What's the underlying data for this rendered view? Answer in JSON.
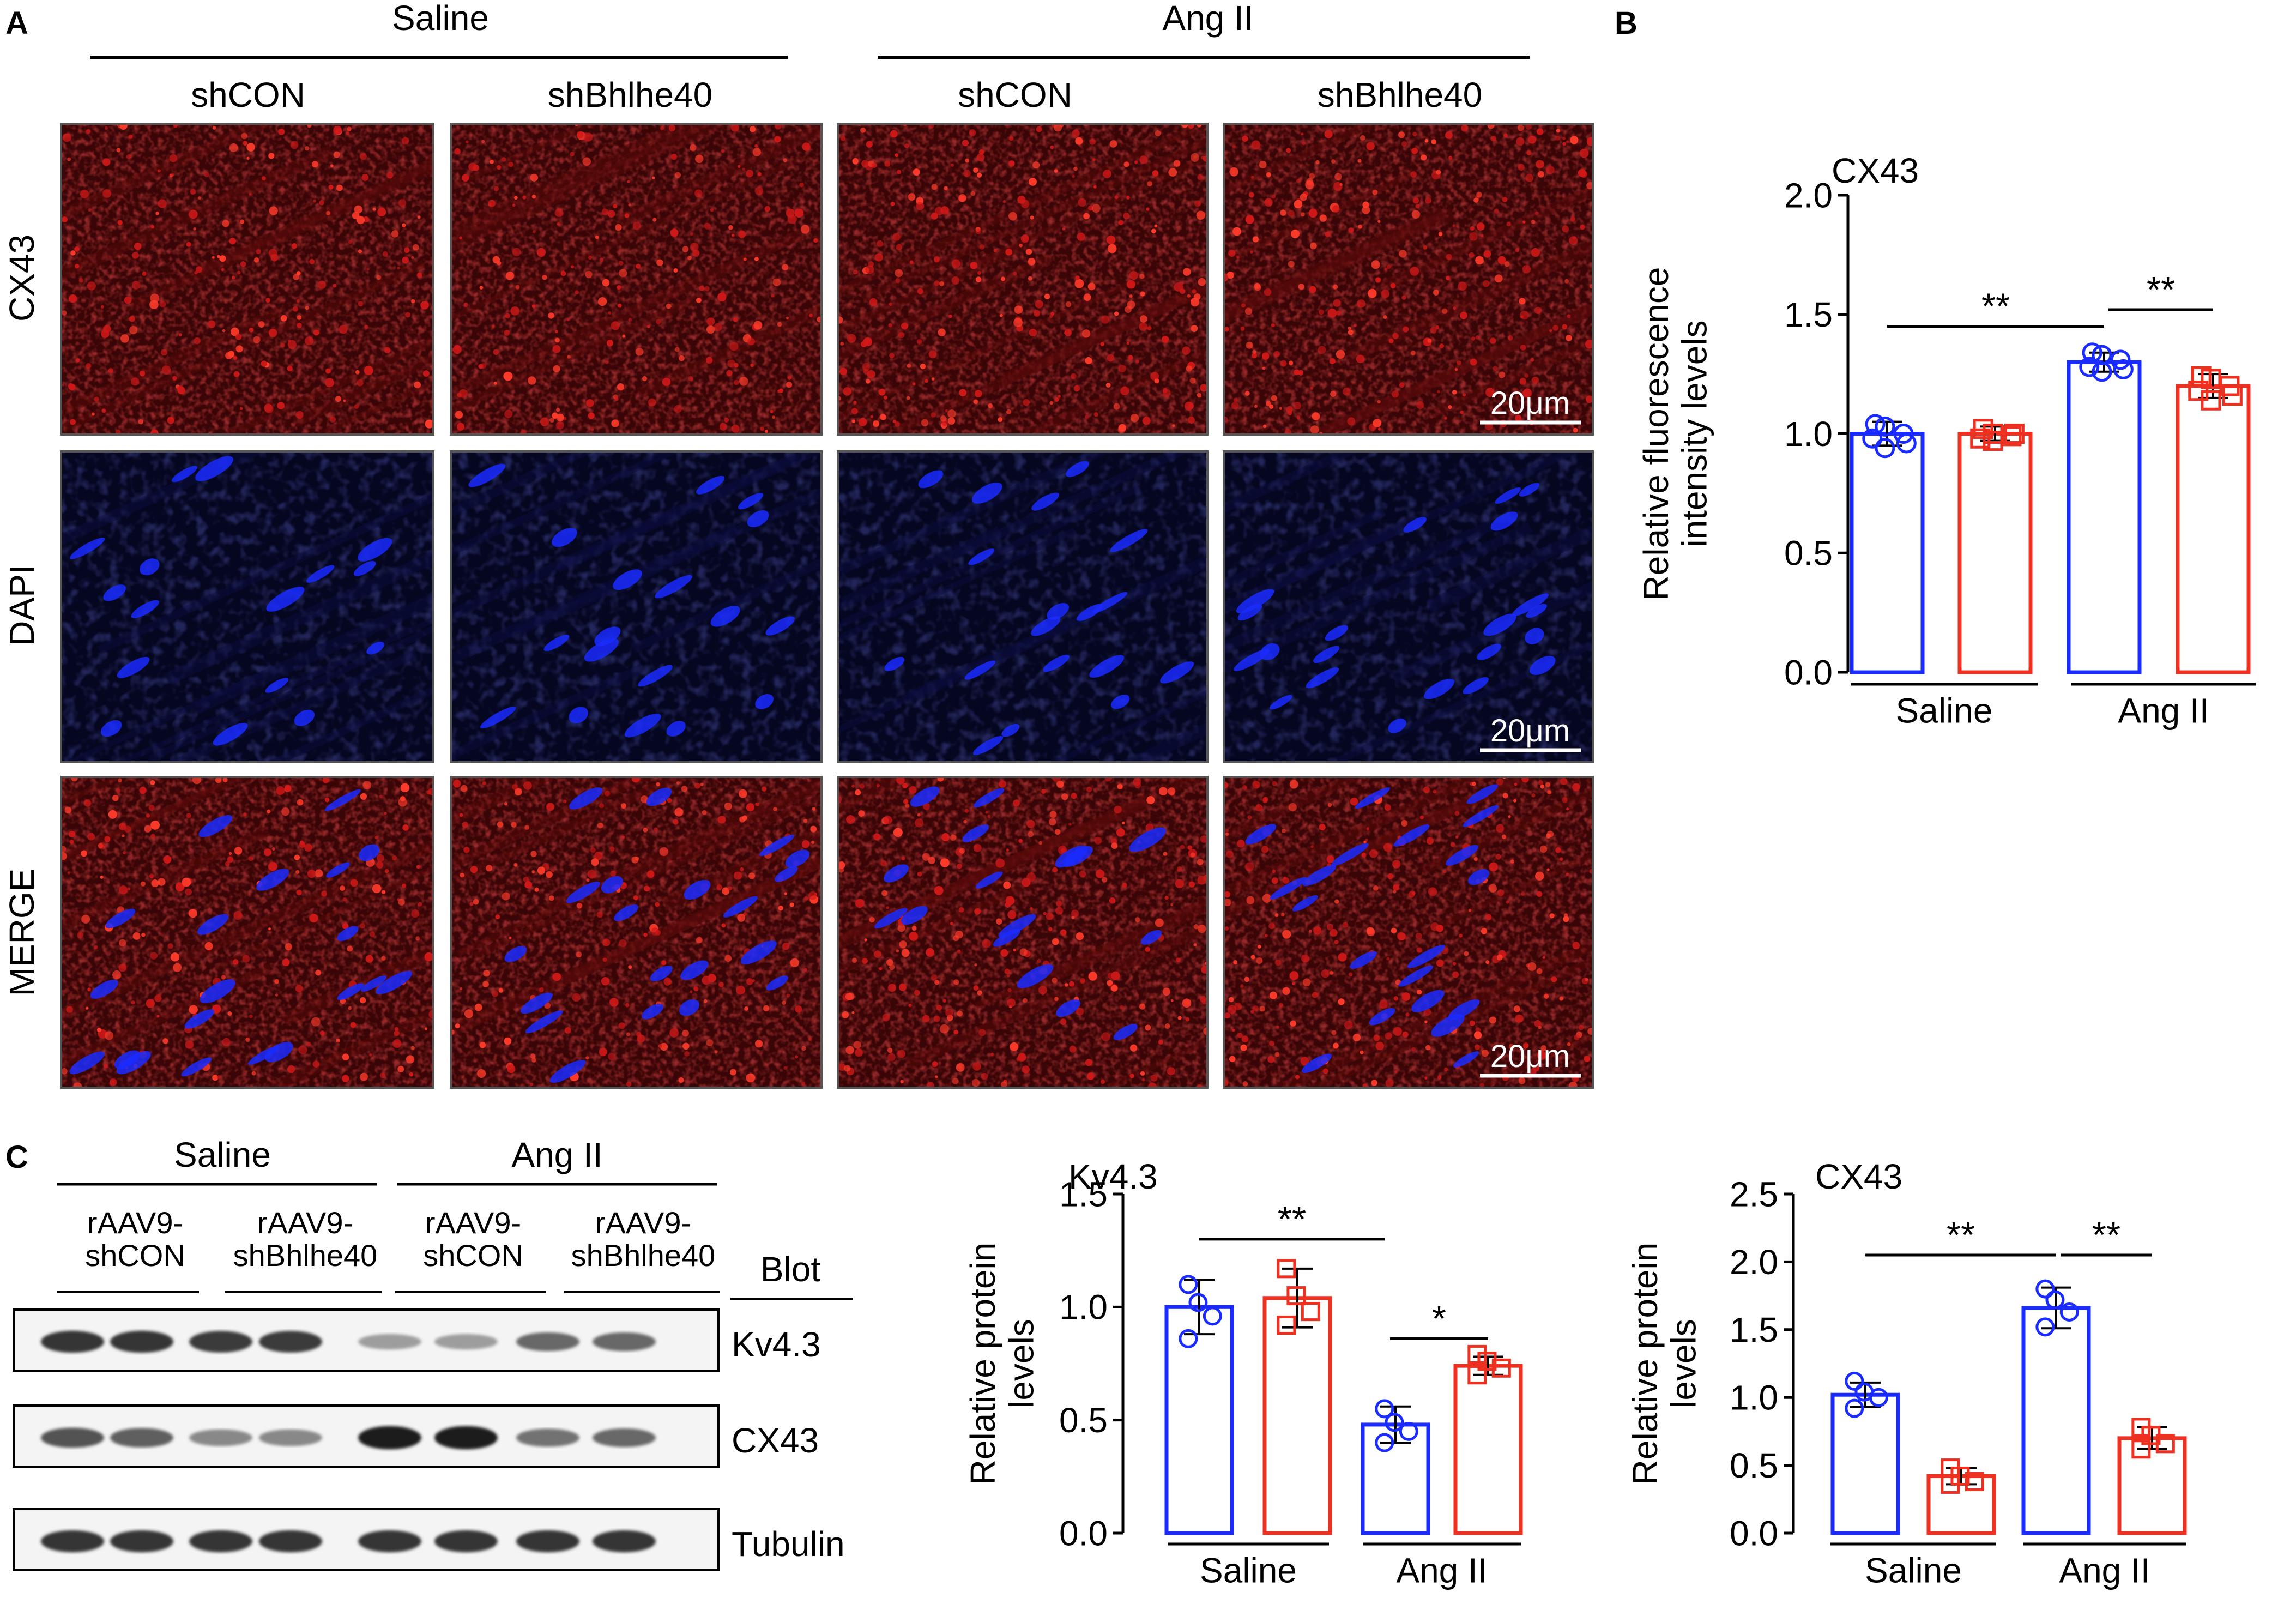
{
  "panel_letters": {
    "a": "A",
    "b": "B",
    "c": "C"
  },
  "panel_a": {
    "groups": [
      "Saline",
      "Ang II"
    ],
    "columns": [
      "shCON",
      "shBhlhe40",
      "shCON",
      "shBhlhe40"
    ],
    "rows": [
      "CX43",
      "DAPI",
      "MERGE"
    ],
    "scale_bar": "20μm",
    "colors": {
      "cx43": "#d01818",
      "dapi": "#1a2bff",
      "bg_red": "#3a0506",
      "bg_blue": "#050620"
    }
  },
  "panel_b": {
    "title": "CX43",
    "ylabel_line1": "Relative fluorescence",
    "ylabel_line2": "intensity levels",
    "yticks": [
      "2.0",
      "1.5",
      "1.0",
      "0.5",
      "0.0"
    ],
    "groups": [
      "Saline",
      "Ang II"
    ],
    "sig": [
      "**",
      "**"
    ]
  },
  "panel_c": {
    "groups": [
      "Saline",
      "Ang II"
    ],
    "lanes": [
      {
        "line1": "rAAV9-",
        "line2": "shCON"
      },
      {
        "line1": "rAAV9-",
        "line2": "shBhlhe40"
      },
      {
        "line1": "rAAV9-",
        "line2": "shCON"
      },
      {
        "line1": "rAAV9-",
        "line2": "shBhlhe40"
      }
    ],
    "blot_header": "Blot",
    "bands": [
      "Kv4.3",
      "CX43",
      "Tubulin"
    ],
    "kv43_intensity": [
      0.85,
      0.85,
      0.82,
      0.82,
      0.35,
      0.35,
      0.6,
      0.6
    ],
    "cx43_intensity": [
      0.7,
      0.65,
      0.45,
      0.45,
      0.95,
      0.95,
      0.55,
      0.6
    ],
    "tub_intensity": [
      0.85,
      0.85,
      0.85,
      0.85,
      0.85,
      0.85,
      0.85,
      0.85
    ]
  },
  "chart_data": [
    {
      "type": "bar",
      "title": "CX43",
      "xlabel": "",
      "ylabel": "Relative fluorescence intensity levels",
      "categories": [
        "Saline",
        "Ang II"
      ],
      "ylim": [
        0,
        2.0
      ],
      "ytick_step": 0.5,
      "ytick_labels": [
        "2.0",
        "1.5",
        "1.0",
        "0.5",
        "0.0"
      ],
      "series": [
        {
          "color": "#1a2bff",
          "values": [
            1.0,
            1.3
          ],
          "errors": [
            0.05,
            0.04
          ],
          "points": [
            [
              1.04,
              1.03,
              1.0,
              0.98,
              0.94,
              0.96
            ],
            [
              1.34,
              1.33,
              1.31,
              1.28,
              1.26,
              1.27
            ]
          ]
        },
        {
          "color": "#ee3020",
          "values": [
            1.0,
            1.2
          ],
          "errors": [
            0.03,
            0.05
          ],
          "points": [
            [
              1.02,
              1.0,
              0.99,
              0.98,
              0.97,
              1.0
            ],
            [
              1.24,
              1.23,
              1.2,
              1.18,
              1.14,
              1.16
            ]
          ]
        }
      ],
      "significance": [
        {
          "label": "**",
          "y": 1.45
        },
        {
          "label": "**",
          "y": 1.52
        }
      ]
    },
    {
      "type": "bar",
      "title": "Kv4.3",
      "xlabel": "",
      "ylabel": "Relative protein levels",
      "categories": [
        "Saline",
        "Ang II"
      ],
      "ylim": [
        0,
        1.5
      ],
      "ytick_step": 0.5,
      "ytick_labels": [
        "1.5",
        "1.0",
        "0.5",
        "0.0"
      ],
      "series": [
        {
          "color": "#1a2bff",
          "values": [
            1.0,
            0.48
          ],
          "errors": [
            0.12,
            0.08
          ],
          "points": [
            [
              1.1,
              1.02,
              0.96,
              0.86
            ],
            [
              0.55,
              0.49,
              0.45,
              0.4
            ]
          ]
        },
        {
          "color": "#ee3020",
          "values": [
            1.04,
            0.74
          ],
          "errors": [
            0.13,
            0.04
          ],
          "points": [
            [
              1.17,
              1.05,
              0.98,
              0.92
            ],
            [
              0.79,
              0.76,
              0.73,
              0.7
            ]
          ]
        }
      ],
      "significance": [
        {
          "label": "**",
          "y": 1.3
        },
        {
          "label": "*",
          "y": 0.86
        }
      ]
    },
    {
      "type": "bar",
      "title": "CX43",
      "xlabel": "",
      "ylabel": "Relative protein levels",
      "categories": [
        "Saline",
        "Ang II"
      ],
      "ylim": [
        0,
        2.5
      ],
      "ytick_step": 0.5,
      "ytick_labels": [
        "2.5",
        "2.0",
        "1.5",
        "1.0",
        "0.5",
        "0.0"
      ],
      "series": [
        {
          "color": "#1a2bff",
          "values": [
            1.02,
            1.66
          ],
          "errors": [
            0.09,
            0.15
          ],
          "points": [
            [
              1.12,
              1.04,
              1.0,
              0.92
            ],
            [
              1.8,
              1.72,
              1.63,
              1.52
            ]
          ]
        },
        {
          "color": "#ee3020",
          "values": [
            0.42,
            0.7
          ],
          "errors": [
            0.06,
            0.08
          ],
          "points": [
            [
              0.48,
              0.42,
              0.38,
              0.36
            ],
            [
              0.78,
              0.72,
              0.66,
              0.62
            ]
          ]
        }
      ],
      "significance": [
        {
          "label": "**",
          "y": 2.05
        },
        {
          "label": "**",
          "y": 2.05
        }
      ]
    }
  ]
}
